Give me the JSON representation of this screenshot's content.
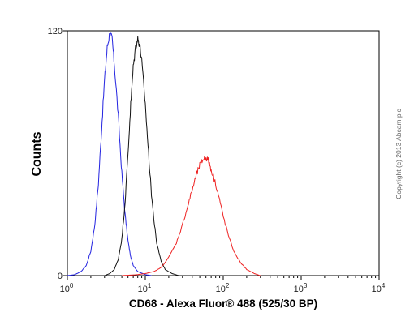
{
  "chart_data": {
    "type": "line",
    "xlabel": "CD68 - Alexa Fluor® 488 (525/30 BP)",
    "ylabel": "Counts",
    "x_scale": "log",
    "xlim": [
      1,
      10000
    ],
    "ylim": [
      0,
      120
    ],
    "x_ticks": [
      {
        "value": 1,
        "base": "10",
        "exp": "0"
      },
      {
        "value": 10,
        "base": "10",
        "exp": "1"
      },
      {
        "value": 100,
        "base": "10",
        "exp": "2"
      },
      {
        "value": 1000,
        "base": "10",
        "exp": "3"
      },
      {
        "value": 10000,
        "base": "10",
        "exp": "4"
      }
    ],
    "y_ticks": [
      {
        "value": 0,
        "label": "0"
      },
      {
        "value": 120,
        "label": "120"
      }
    ],
    "grid": false,
    "legend": "none",
    "annotation": "Copyright (c) 2013 Abcam plc",
    "series": [
      {
        "color": "#2323e0",
        "points": [
          [
            1.0,
            0
          ],
          [
            1.25,
            0.5
          ],
          [
            1.5,
            2
          ],
          [
            1.75,
            5
          ],
          [
            2.0,
            12
          ],
          [
            2.25,
            25
          ],
          [
            2.5,
            45
          ],
          [
            2.75,
            72
          ],
          [
            3.0,
            96
          ],
          [
            3.25,
            112
          ],
          [
            3.5,
            119
          ],
          [
            3.75,
            116
          ],
          [
            4.0,
            104
          ],
          [
            4.5,
            78
          ],
          [
            5.0,
            50
          ],
          [
            5.5,
            30
          ],
          [
            6.0,
            17
          ],
          [
            6.5,
            9
          ],
          [
            7.0,
            5
          ],
          [
            8.0,
            2
          ],
          [
            10.0,
            0.5
          ],
          [
            12.0,
            0
          ]
        ]
      },
      {
        "color": "#111111",
        "points": [
          [
            3.0,
            0
          ],
          [
            3.5,
            1
          ],
          [
            4.0,
            3
          ],
          [
            4.5,
            8
          ],
          [
            5.0,
            18
          ],
          [
            5.5,
            36
          ],
          [
            6.0,
            60
          ],
          [
            6.5,
            84
          ],
          [
            7.0,
            102
          ],
          [
            7.5,
            112
          ],
          [
            8.0,
            116
          ],
          [
            8.5,
            113
          ],
          [
            9.0,
            105
          ],
          [
            10.0,
            84
          ],
          [
            11.0,
            60
          ],
          [
            12.0,
            40
          ],
          [
            13.0,
            26
          ],
          [
            14.0,
            16
          ],
          [
            16.0,
            7
          ],
          [
            18.0,
            3
          ],
          [
            22.0,
            1
          ],
          [
            27.0,
            0
          ]
        ]
      },
      {
        "color": "#ee2222",
        "points": [
          [
            5.0,
            0
          ],
          [
            8.0,
            0.5
          ],
          [
            10.0,
            1
          ],
          [
            13.0,
            2
          ],
          [
            16.0,
            4
          ],
          [
            20.0,
            9
          ],
          [
            25.0,
            16
          ],
          [
            30.0,
            25
          ],
          [
            35.0,
            34
          ],
          [
            40.0,
            42
          ],
          [
            45.0,
            49
          ],
          [
            50.0,
            54
          ],
          [
            55.0,
            57
          ],
          [
            60.0,
            58
          ],
          [
            65.0,
            56
          ],
          [
            70.0,
            52
          ],
          [
            80.0,
            45
          ],
          [
            90.0,
            37
          ],
          [
            100.0,
            29
          ],
          [
            120.0,
            18
          ],
          [
            140.0,
            11
          ],
          [
            170.0,
            6
          ],
          [
            200.0,
            3
          ],
          [
            250.0,
            1
          ],
          [
            300.0,
            0
          ]
        ]
      }
    ]
  }
}
